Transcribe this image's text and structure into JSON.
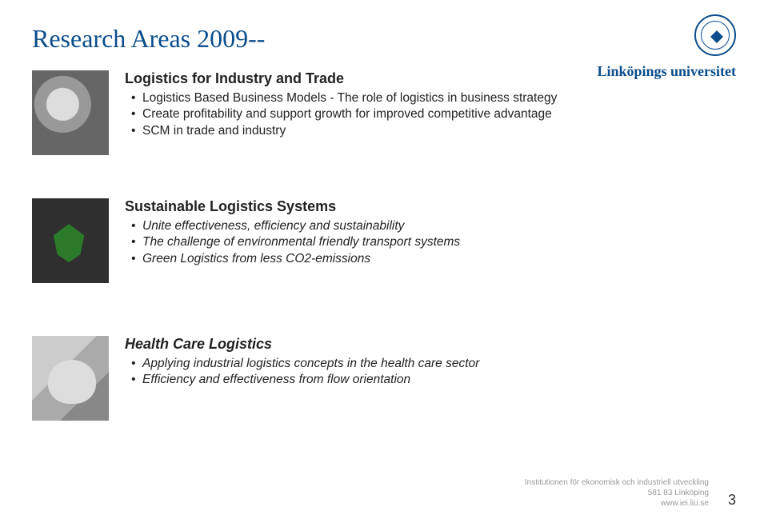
{
  "title": "Research Areas 2009--",
  "logo": {
    "wordmark": "Linköpings universitet"
  },
  "sections": [
    {
      "heading": "Logistics for Industry and Trade",
      "bullets": [
        "Logistics Based Business Models - The role of logistics in business strategy",
        "Create profitability and support growth for improved competitive advantage",
        "SCM in trade and industry"
      ],
      "italic": false
    },
    {
      "heading": "Sustainable Logistics Systems",
      "bullets": [
        "Unite effectiveness, efficiency and sustainability",
        "The challenge of environmental friendly transport systems",
        "Green Logistics from less CO2-emissions"
      ],
      "italic": true
    },
    {
      "heading": "Health Care Logistics",
      "bullets": [
        "Applying industrial logistics concepts in the health care sector",
        "Efficiency and effectiveness from flow orientation"
      ],
      "italic": true
    }
  ],
  "footer": {
    "line1": "Institutionen för ekonomisk och industriell utveckling",
    "line2": "581 83 Linköping",
    "line3": "www.iei.liu.se",
    "page": "3"
  },
  "colors": {
    "title": "#0a4d8c",
    "text": "#222222",
    "footer": "#9a9a9a",
    "background": "#ffffff"
  }
}
